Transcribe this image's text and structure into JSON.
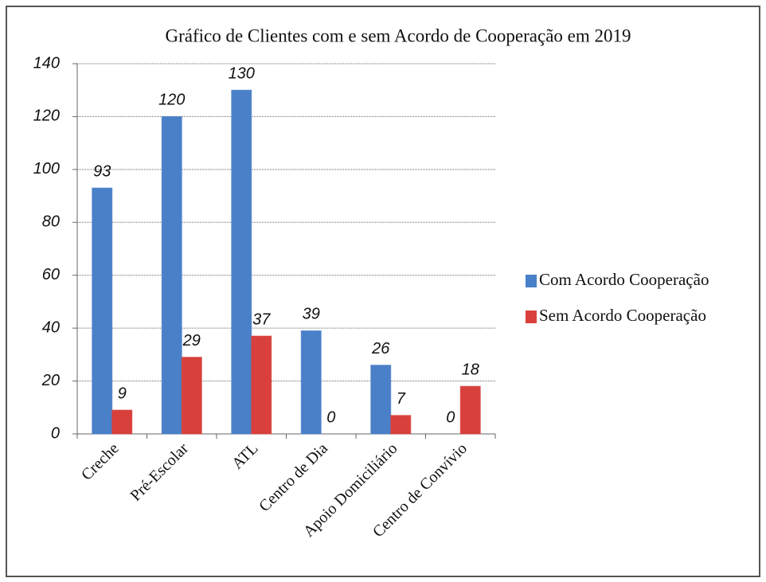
{
  "chart_data": {
    "type": "bar",
    "title": "Gráfico de Clientes com e sem Acordo de Cooperação em  2019",
    "categories": [
      "Creche",
      "Pré-Escolar",
      "ATL",
      "Centro de Dia",
      "Apoio Domiciliário",
      "Centro de Convívio"
    ],
    "series": [
      {
        "name": "Com Acordo Cooperação",
        "color": "#4a80c8",
        "values": [
          93,
          120,
          130,
          39,
          26,
          0
        ]
      },
      {
        "name": "Sem Acordo Cooperação",
        "color": "#d8403c",
        "values": [
          9,
          29,
          37,
          0,
          7,
          18
        ]
      }
    ],
    "ylim": [
      0,
      140
    ],
    "yticks": [
      0,
      20,
      40,
      60,
      80,
      100,
      120,
      140
    ],
    "grid": true,
    "legend": "right"
  }
}
